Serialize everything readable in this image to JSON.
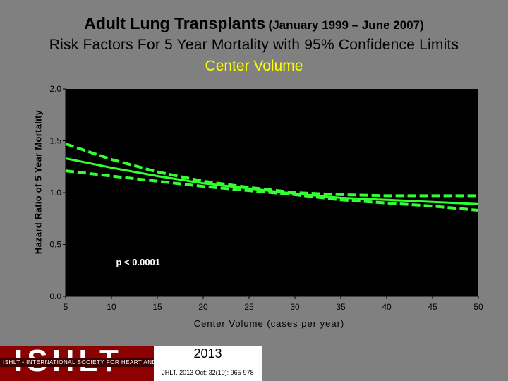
{
  "header": {
    "title_main": "Adult Lung Transplants",
    "title_dates": "(January 1999 – June 2007)",
    "subtitle": "Risk Factors For 5 Year Mortality with 95% Confidence Limits",
    "variable": "Center Volume"
  },
  "footer": {
    "logo_text": "ISHLT",
    "logo_banner": "ISHLT • INTERNATIONAL SOCIETY FOR HEART AND LUNG TRANSPLANTATION",
    "year": "2013",
    "citation": "JHLT. 2013 Oct; 32(10): 965-978"
  },
  "colors": {
    "background": "#808080",
    "plot_background": "#000000",
    "curve": "#33ff33",
    "subtitle_accent": "#ffff00"
  },
  "chart_data": {
    "type": "line",
    "title": "",
    "xlabel": "Center Volume (cases per year)",
    "ylabel": "Hazard Ratio of 5 Year Mortality",
    "xlim": [
      5,
      50
    ],
    "ylim": [
      0.0,
      2.0
    ],
    "x_ticks": [
      "5",
      "10",
      "15",
      "20",
      "25",
      "30",
      "35",
      "40",
      "45",
      "50"
    ],
    "y_ticks": [
      "0.0",
      "0.5",
      "1.0",
      "1.5",
      "2.0"
    ],
    "grid": false,
    "annotation": "p < 0.0001",
    "series": [
      {
        "role": "estimate",
        "style": "solid",
        "x": [
          5,
          10,
          15,
          20,
          25,
          30,
          35,
          40,
          45,
          50
        ],
        "y": [
          1.33,
          1.24,
          1.16,
          1.09,
          1.04,
          0.99,
          0.95,
          0.93,
          0.91,
          0.89
        ]
      },
      {
        "role": "upper_95",
        "style": "dashed",
        "x": [
          5,
          10,
          15,
          20,
          25,
          30,
          35,
          40,
          45,
          50
        ],
        "y": [
          1.47,
          1.32,
          1.2,
          1.11,
          1.05,
          1.0,
          0.98,
          0.97,
          0.97,
          0.97
        ]
      },
      {
        "role": "lower_95",
        "style": "dashed",
        "x": [
          5,
          10,
          15,
          20,
          25,
          30,
          35,
          40,
          45,
          50
        ],
        "y": [
          1.21,
          1.16,
          1.11,
          1.06,
          1.02,
          0.98,
          0.93,
          0.9,
          0.87,
          0.83
        ]
      }
    ]
  }
}
